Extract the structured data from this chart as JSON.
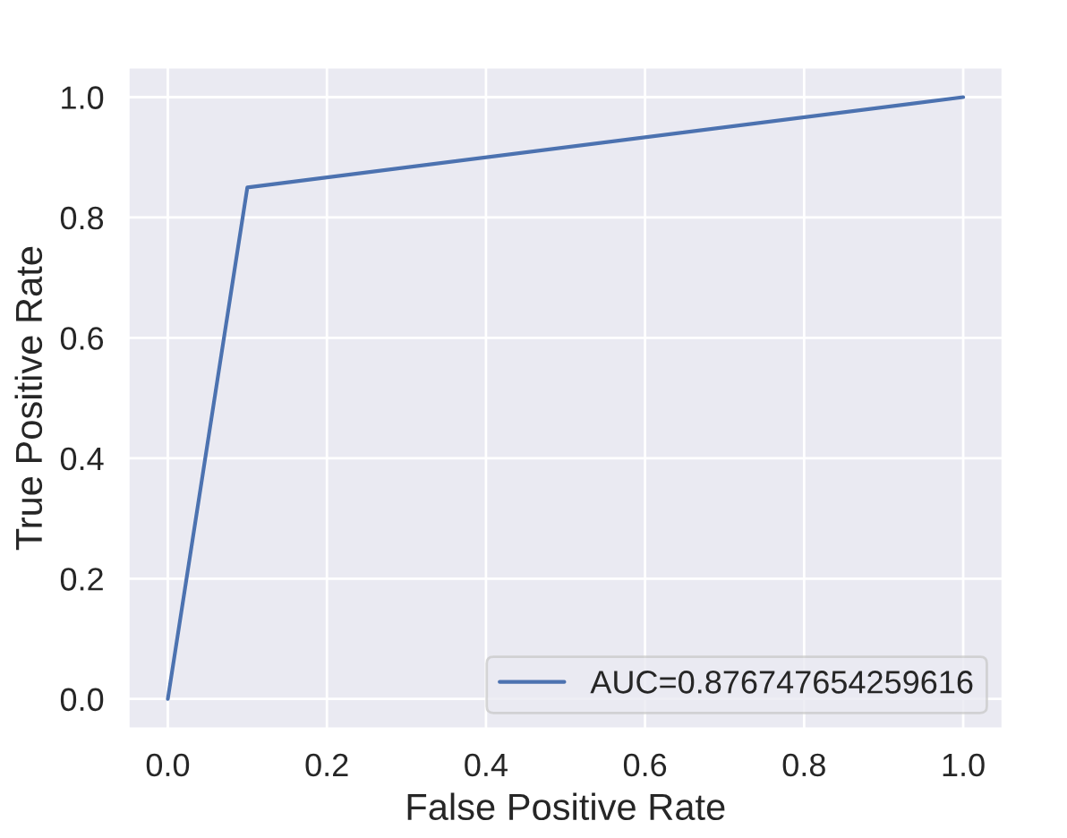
{
  "chart_data": {
    "type": "line",
    "xlabel": "False Positive Rate",
    "ylabel": "True Positive Rate",
    "x": [
      0.0,
      0.1,
      1.0
    ],
    "series": [
      {
        "name": "AUC=0.876747654259616",
        "color": "#4c72b0",
        "values": [
          0.0,
          0.85,
          1.0
        ]
      }
    ],
    "xlim": [
      -0.05,
      1.05
    ],
    "ylim": [
      -0.05,
      1.05
    ],
    "xticks": [
      {
        "value": 0.0,
        "label": "0.0"
      },
      {
        "value": 0.2,
        "label": "0.2"
      },
      {
        "value": 0.4,
        "label": "0.4"
      },
      {
        "value": 0.6,
        "label": "0.6"
      },
      {
        "value": 0.8,
        "label": "0.8"
      },
      {
        "value": 1.0,
        "label": "1.0"
      }
    ],
    "yticks": [
      {
        "value": 0.0,
        "label": "0.0"
      },
      {
        "value": 0.2,
        "label": "0.2"
      },
      {
        "value": 0.4,
        "label": "0.4"
      },
      {
        "value": 0.6,
        "label": "0.6"
      },
      {
        "value": 0.8,
        "label": "0.8"
      },
      {
        "value": 1.0,
        "label": "1.0"
      }
    ],
    "grid": true,
    "legend": "bottom right"
  }
}
